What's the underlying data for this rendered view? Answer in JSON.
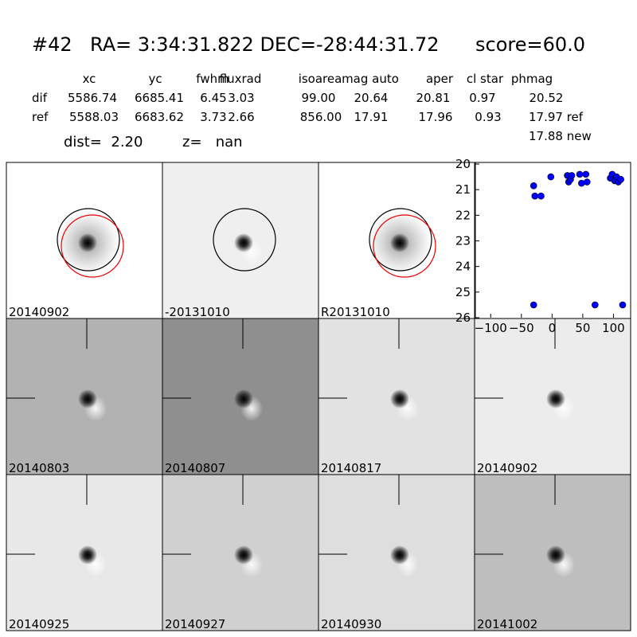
{
  "header": {
    "id": "#42",
    "coords": "RA= 3:34:31.822 DEC=-28:44:31.72",
    "score": "score=60.0"
  },
  "table": {
    "columns": [
      "xc",
      "yc",
      "fwhm",
      "fluxrad",
      "isoarea",
      "mag auto",
      "aper",
      "cl star",
      "phmag"
    ],
    "rows": [
      {
        "label": "dif",
        "cells": [
          "5586.74",
          "6685.41",
          "6.45",
          "3.03",
          "99.00",
          "20.64",
          "20.81",
          "0.97",
          "20.52"
        ]
      },
      {
        "label": "ref",
        "cells": [
          "5588.03",
          "6683.62",
          "3.73",
          "2.66",
          "856.00",
          "17.91",
          "17.96",
          "0.93",
          "17.97 ref"
        ]
      }
    ],
    "extra": "17.88 new"
  },
  "dist": "dist=  2.20",
  "z": "z=   nan",
  "panels": [
    {
      "label": "20140902"
    },
    {
      "label": "-20131010"
    },
    {
      "label": "R20131010"
    },
    {
      "label": "20140803"
    },
    {
      "label": "20140807"
    },
    {
      "label": "20140817"
    },
    {
      "label": "20140902",
      "color": "#ff0000"
    },
    {
      "label": "20140925"
    },
    {
      "label": "20140927"
    },
    {
      "label": "20140930"
    },
    {
      "label": "20141002"
    }
  ],
  "chart_data": {
    "type": "scatter",
    "color": "#0000ff",
    "x": [
      -30,
      -30,
      -28,
      -18,
      -2,
      25,
      27,
      30,
      32,
      45,
      48,
      55,
      57,
      70,
      95,
      98,
      102,
      105,
      108,
      112,
      115
    ],
    "y": [
      25.5,
      20.85,
      21.25,
      21.25,
      20.5,
      20.45,
      20.7,
      20.6,
      20.45,
      20.4,
      20.75,
      20.4,
      20.7,
      25.5,
      20.55,
      20.4,
      20.65,
      20.5,
      20.7,
      20.6,
      25.5
    ],
    "xlim": [
      -125,
      128
    ],
    "ylim": [
      26,
      20
    ],
    "xticks": [
      {
        "value": -100,
        "label": "−100"
      },
      {
        "value": -50,
        "label": "−50"
      },
      0,
      50,
      100
    ],
    "yticks": [
      20,
      21,
      22,
      23,
      24,
      25,
      26
    ]
  }
}
